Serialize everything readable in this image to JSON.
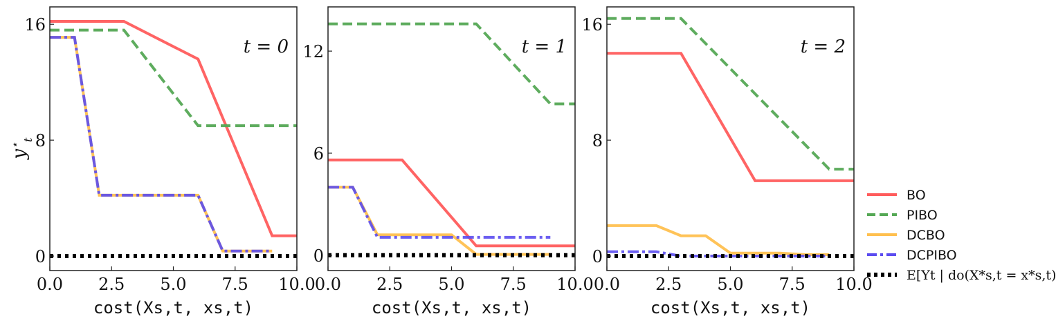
{
  "figure": {
    "ylabel": "y*t",
    "xlabel": "cost(Xs,t, xs,t)"
  },
  "chart_data": [
    {
      "type": "line",
      "title": "t = 0",
      "xlim": [
        0,
        10
      ],
      "ylim": [
        -1,
        17.2
      ],
      "xticks": [
        0,
        2.5,
        5,
        7.5,
        10
      ],
      "xtick_labels": [
        "0.0",
        "2.5",
        "5.0",
        "7.5",
        "10.0"
      ],
      "yticks": [
        0,
        8,
        16
      ],
      "ytick_labels": [
        "0",
        "8",
        "16"
      ],
      "series": [
        {
          "name": "BO",
          "x": [
            0,
            3,
            6,
            9,
            10
          ],
          "y": [
            16.2,
            16.2,
            13.6,
            1.4,
            1.4
          ]
        },
        {
          "name": "PIBO",
          "x": [
            0,
            3,
            6,
            10
          ],
          "y": [
            15.6,
            15.6,
            9.0,
            9.0
          ]
        },
        {
          "name": "DCBO",
          "x": [
            0,
            1,
            2,
            6,
            7,
            9
          ],
          "y": [
            15.1,
            15.1,
            4.2,
            4.2,
            0.35,
            0.35
          ]
        },
        {
          "name": "DCPIBO",
          "x": [
            0,
            1,
            2,
            6,
            7,
            9
          ],
          "y": [
            15.1,
            15.1,
            4.2,
            4.2,
            0.35,
            0.35
          ]
        },
        {
          "name": "E[Yt | do(X*s,t = x*s,t)]",
          "x": [
            0,
            10
          ],
          "y": [
            0,
            0
          ]
        }
      ]
    },
    {
      "type": "line",
      "title": "t = 1",
      "xlim": [
        0,
        10
      ],
      "ylim": [
        -0.9,
        14.6
      ],
      "xticks": [
        0,
        2.5,
        5,
        7.5,
        10
      ],
      "xtick_labels": [
        "0.0",
        "2.5",
        "5.0",
        "7.5",
        "10.0"
      ],
      "yticks": [
        0,
        6,
        12
      ],
      "ytick_labels": [
        "0",
        "6",
        "12"
      ],
      "series": [
        {
          "name": "BO",
          "x": [
            0,
            3,
            6,
            10
          ],
          "y": [
            5.6,
            5.6,
            0.55,
            0.55
          ]
        },
        {
          "name": "PIBO",
          "x": [
            0,
            6,
            9,
            10
          ],
          "y": [
            13.6,
            13.6,
            8.9,
            8.9
          ]
        },
        {
          "name": "DCBO",
          "x": [
            0,
            1,
            2,
            5,
            6,
            9
          ],
          "y": [
            4.0,
            4.0,
            1.2,
            1.2,
            0.05,
            0.05
          ]
        },
        {
          "name": "DCPIBO",
          "x": [
            0,
            1,
            2,
            9
          ],
          "y": [
            4.0,
            4.0,
            1.05,
            1.05
          ]
        },
        {
          "name": "E[Yt | do(X*s,t = x*s,t)]",
          "x": [
            0,
            10
          ],
          "y": [
            0,
            0
          ]
        }
      ]
    },
    {
      "type": "line",
      "title": "t = 2",
      "xlim": [
        0,
        10
      ],
      "ylim": [
        -1,
        17.2
      ],
      "xticks": [
        0,
        2.5,
        5,
        7.5,
        10
      ],
      "xtick_labels": [
        "0.0",
        "2.5",
        "5.0",
        "7.5",
        "10.0"
      ],
      "yticks": [
        0,
        8,
        16
      ],
      "ytick_labels": [
        "0",
        "8",
        "16"
      ],
      "series": [
        {
          "name": "BO",
          "x": [
            0,
            3,
            6,
            10
          ],
          "y": [
            14.0,
            14.0,
            5.2,
            5.2
          ]
        },
        {
          "name": "PIBO",
          "x": [
            0,
            3,
            9,
            10
          ],
          "y": [
            16.4,
            16.4,
            6.0,
            6.0
          ]
        },
        {
          "name": "DCBO",
          "x": [
            0,
            2,
            3,
            4,
            5,
            7,
            8,
            9
          ],
          "y": [
            2.1,
            2.1,
            1.4,
            1.4,
            0.2,
            0.2,
            0.1,
            0.1
          ]
        },
        {
          "name": "DCPIBO",
          "x": [
            0,
            2,
            3,
            9
          ],
          "y": [
            0.3,
            0.3,
            0.0,
            0.0
          ]
        },
        {
          "name": "E[Yt | do(X*s,t = x*s,t)]",
          "x": [
            0,
            10
          ],
          "y": [
            0,
            0
          ]
        }
      ]
    }
  ],
  "legend": {
    "placement": "right",
    "items": [
      {
        "label": "BO",
        "color": "#ff5c5c",
        "style": "solid"
      },
      {
        "label": "PIBO",
        "color": "#55a855",
        "style": "dashed"
      },
      {
        "label": "DCBO",
        "color": "#ffc04f",
        "style": "solid"
      },
      {
        "label": "DCPIBO",
        "color": "#5b4cf0",
        "style": "dashdot"
      },
      {
        "label": "E[Yt | do(X*s,t = x*s,t)]",
        "color": "#000000",
        "style": "dotted"
      }
    ]
  }
}
